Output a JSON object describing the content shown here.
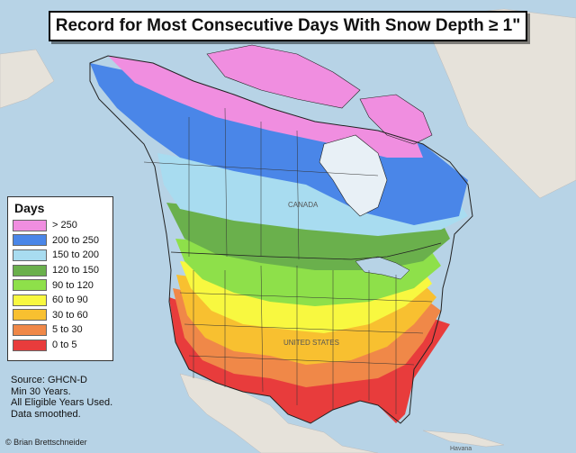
{
  "title": "Record for Most Consecutive Days With Snow Depth ≥ 1\"",
  "legend": {
    "title": "Days",
    "items": [
      {
        "label": "> 250",
        "color": "#f08ee0"
      },
      {
        "label": "200 to 250",
        "color": "#4a86e8"
      },
      {
        "label": "150 to 200",
        "color": "#a8dcf0"
      },
      {
        "label": "120 to 150",
        "color": "#6ab04c"
      },
      {
        "label": "90 to 120",
        "color": "#8ee04a"
      },
      {
        "label": "60 to 90",
        "color": "#f8f840"
      },
      {
        "label": "30 to 60",
        "color": "#f8c030"
      },
      {
        "label": "5 to 30",
        "color": "#f08848"
      },
      {
        "label": "0 to 5",
        "color": "#e83c3c"
      }
    ]
  },
  "notes": [
    "Source: GHCN-D",
    "Min 30 Years.",
    "All Eligible Years Used.",
    "Data smoothed."
  ],
  "credit": "© Brian Brettschneider",
  "places": [
    "CANADA",
    "UNITED STATES",
    "Havana"
  ],
  "colors": {
    "ocean": "#b7d3e6",
    "land_outside": "#e8e4dc",
    "border": "#222222"
  }
}
